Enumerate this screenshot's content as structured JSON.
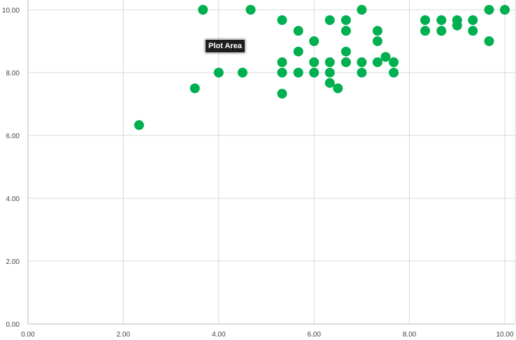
{
  "chart_data": {
    "type": "scatter",
    "title": "",
    "xlabel": "",
    "ylabel": "",
    "xlim": [
      0,
      10
    ],
    "ylim": [
      0,
      10
    ],
    "xticks": [
      "0.00",
      "2.00",
      "4.00",
      "6.00",
      "8.00",
      "10.00"
    ],
    "yticks": [
      "0.00",
      "2.00",
      "4.00",
      "6.00",
      "8.00",
      "10.00"
    ],
    "grid": true,
    "color": "#00b050",
    "points": [
      [
        2.33,
        6.33
      ],
      [
        3.5,
        7.5
      ],
      [
        3.67,
        10
      ],
      [
        4,
        8
      ],
      [
        4.5,
        8
      ],
      [
        4.67,
        10
      ],
      [
        5.33,
        9.67
      ],
      [
        5.33,
        8.33
      ],
      [
        5.33,
        8
      ],
      [
        5.33,
        7.33
      ],
      [
        5.67,
        9.33
      ],
      [
        5.67,
        8.67
      ],
      [
        5.67,
        8
      ],
      [
        6,
        9
      ],
      [
        6,
        8.33
      ],
      [
        6,
        8
      ],
      [
        6.33,
        9.67
      ],
      [
        6.33,
        8.33
      ],
      [
        6.33,
        8
      ],
      [
        6.33,
        7.67
      ],
      [
        6.5,
        7.5
      ],
      [
        6.67,
        9.67
      ],
      [
        6.67,
        9.33
      ],
      [
        6.67,
        8.67
      ],
      [
        6.67,
        8.33
      ],
      [
        7,
        10
      ],
      [
        7,
        8.33
      ],
      [
        7,
        8
      ],
      [
        7.33,
        9.33
      ],
      [
        7.33,
        9
      ],
      [
        7.33,
        8.33
      ],
      [
        7.5,
        8.5
      ],
      [
        7.67,
        8.33
      ],
      [
        7.67,
        8
      ],
      [
        8.33,
        9.67
      ],
      [
        8.33,
        9.33
      ],
      [
        8.67,
        9.67
      ],
      [
        8.67,
        9.33
      ],
      [
        9,
        9.67
      ],
      [
        9,
        9.5
      ],
      [
        9.33,
        9.67
      ],
      [
        9.33,
        9.33
      ],
      [
        9.67,
        10
      ],
      [
        9.67,
        9
      ],
      [
        10,
        10
      ]
    ]
  },
  "tooltip": "Plot Area"
}
